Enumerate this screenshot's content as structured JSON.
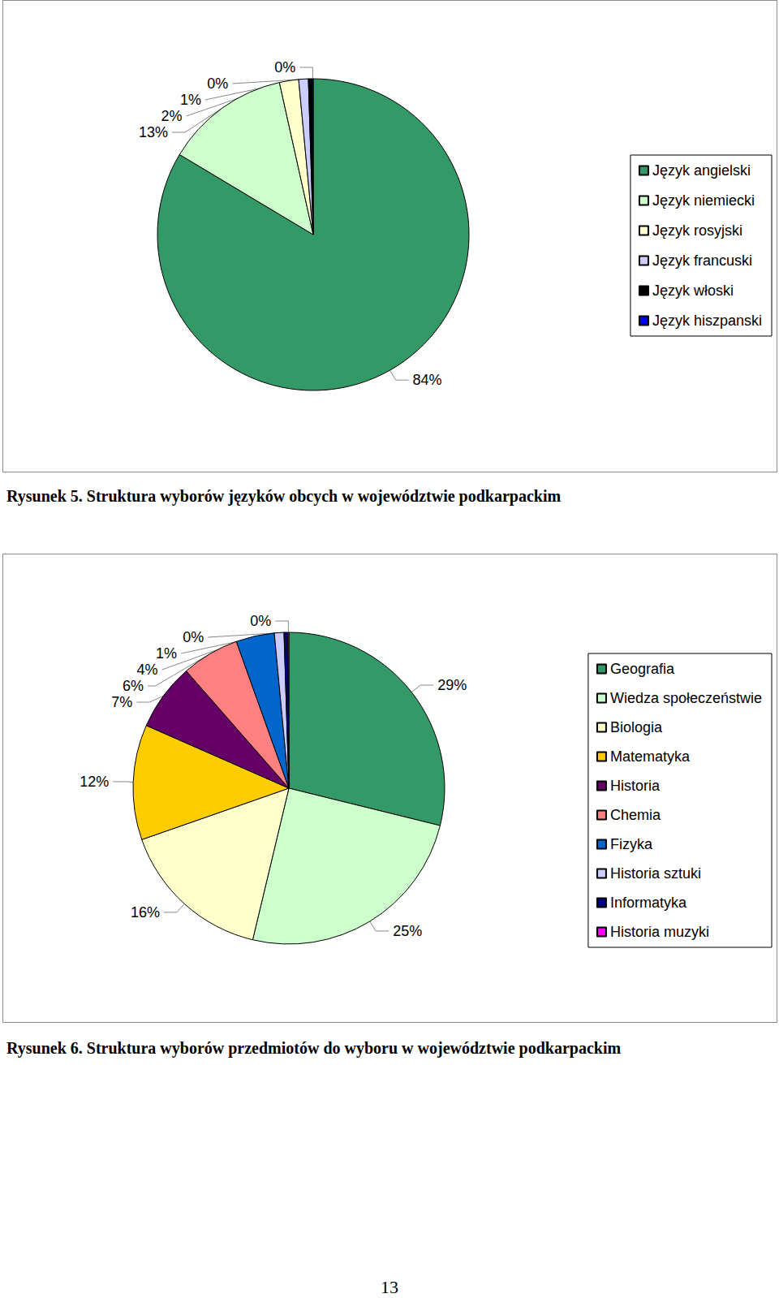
{
  "chart_data": [
    {
      "type": "pie",
      "title": "Rysunek 5. Struktura wyborów języków obcych w województwie podkarpackim",
      "categories": [
        "Język angielski",
        "Język niemiecki",
        "Język rosyjski",
        "Język francuski",
        "Język włoski",
        "Język hiszpanski"
      ],
      "values": [
        84,
        13,
        2,
        1,
        0.4,
        0.1
      ],
      "value_labels": [
        "84%",
        "13%",
        "2%",
        "1%",
        "0%",
        "0%"
      ],
      "colors": [
        "#339966",
        "#ccffcc",
        "#ffffcc",
        "#ccccff",
        "#000000",
        "#0000ff"
      ],
      "legend": "right",
      "data_labels": true
    },
    {
      "type": "pie",
      "title": "Rysunek 6. Struktura wyborów przedmiotów do wyboru w województwie podkarpackim",
      "categories": [
        "Geografia",
        "Wiedza społeczeństwie",
        "Biologia",
        "Matematyka",
        "Historia",
        "Chemia",
        "Fizyka",
        "Historia sztuki",
        "Informatyka",
        "Historia muzyki"
      ],
      "values": [
        29,
        25,
        16,
        12,
        7,
        6,
        4,
        1,
        0.4,
        0.1
      ],
      "value_labels": [
        "29%",
        "25%",
        "16%",
        "12%",
        "7%",
        "6%",
        "4%",
        "1%",
        "0%",
        "0%"
      ],
      "colors": [
        "#339966",
        "#ccffcc",
        "#ffffcc",
        "#ffcc00",
        "#660066",
        "#ff8080",
        "#0066cc",
        "#ccccff",
        "#000080",
        "#ff00ff"
      ],
      "legend": "right",
      "data_labels": true
    }
  ],
  "page_number": 13
}
